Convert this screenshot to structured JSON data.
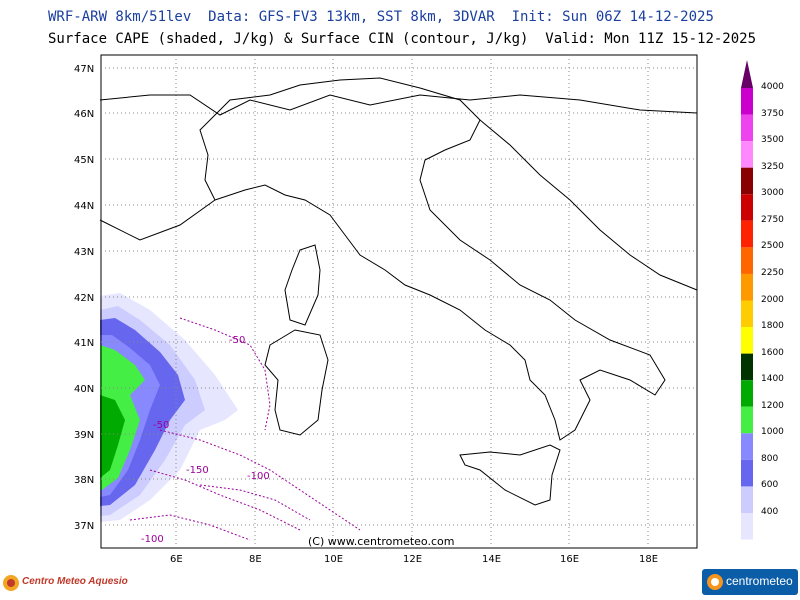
{
  "header": {
    "line1": "WRF-ARW 8km/51lev  Data: GFS-FV3 13km, SST 8km, 3DVAR  Init: Sun 06Z 14-12-2025",
    "line2": "Surface CAPE (shaded, J/kg) & Surface CIN (contour, J/kg)  Valid: Mon 11Z 15-12-2025"
  },
  "axes": {
    "lat_labels": [
      "47N",
      "46N",
      "45N",
      "44N",
      "43N",
      "42N",
      "41N",
      "40N",
      "39N",
      "38N",
      "37N"
    ],
    "lon_labels": [
      "6E",
      "8E",
      "10E",
      "12E",
      "14E",
      "16E",
      "18E"
    ]
  },
  "colorbar": {
    "labels": [
      "4000",
      "3750",
      "3500",
      "3250",
      "3000",
      "2750",
      "2500",
      "2250",
      "2000",
      "1800",
      "1600",
      "1400",
      "1200",
      "1000",
      "800",
      "600",
      "400"
    ],
    "colors": [
      "#cc00cc",
      "#ee44ee",
      "#ff88ff",
      "#880000",
      "#cc0000",
      "#ff2200",
      "#ff6600",
      "#ff9900",
      "#ffcc00",
      "#ffff00",
      "#003300",
      "#00aa00",
      "#44ee44",
      "#8888ff",
      "#6666ee",
      "#ccccff",
      "#e6e6ff"
    ],
    "top_color": "#660066"
  },
  "cin_labels": [
    "-50",
    "-50",
    "-150",
    "-100",
    "-100"
  ],
  "copyright": "(C) www.centrometeo.com",
  "footer": {
    "left_logo": "Centro Meteo Aquesio",
    "right_logo": "centrometeo"
  }
}
